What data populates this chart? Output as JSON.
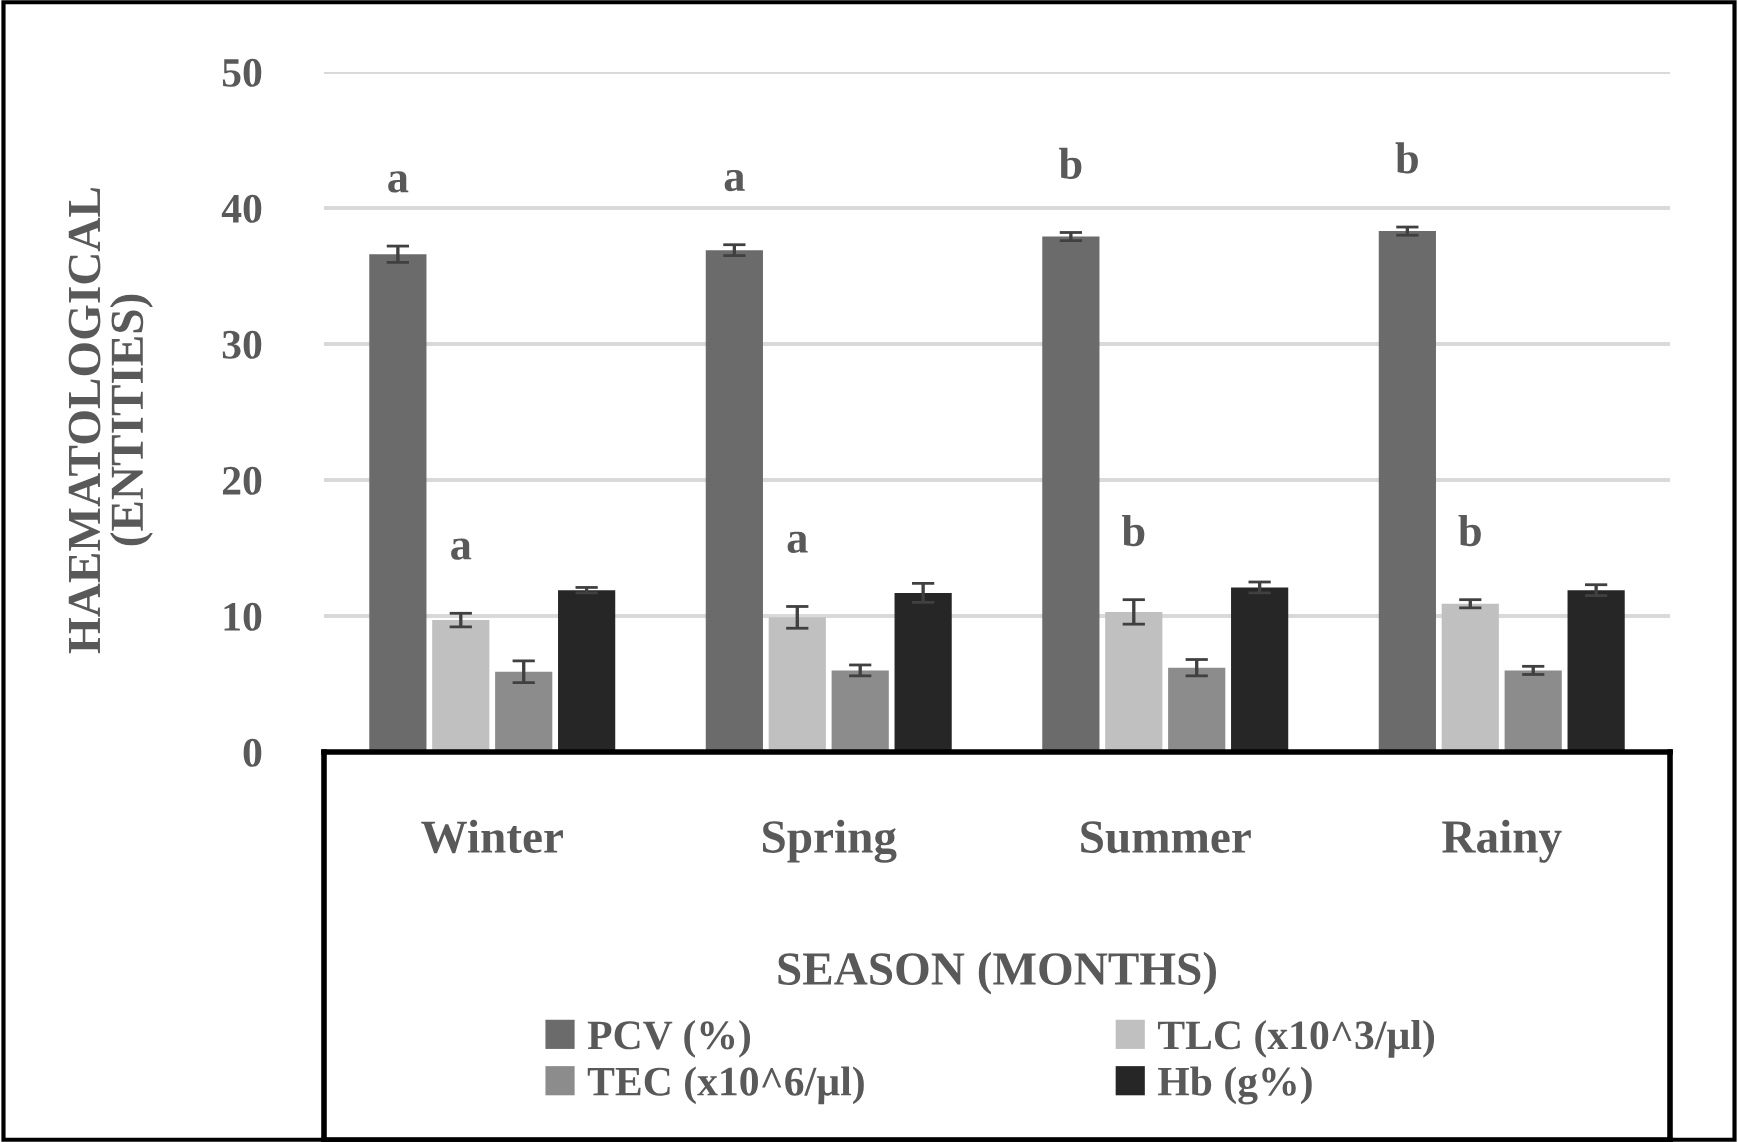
{
  "chart_data": {
    "type": "bar",
    "ylabel": "HAEMATOLOGICAL\n(ENTITIES)",
    "xlabel": "SEASON (MONTHS)",
    "categories": [
      "Winter",
      "Spring",
      "Summer",
      "Rainy"
    ],
    "series": [
      {
        "name": "PCV (%)",
        "color": "#6b6b6b",
        "values": [
          36.6,
          36.9,
          37.9,
          38.3
        ],
        "errors": [
          0.6,
          0.4,
          0.3,
          0.3
        ],
        "value_labels": [
          "a",
          "a",
          "b",
          "b"
        ]
      },
      {
        "name": "TLC (x10^3/µl)",
        "color": "#c0c0c0",
        "values": [
          9.7,
          9.9,
          10.3,
          10.9
        ],
        "errors": [
          0.5,
          0.8,
          0.9,
          0.3
        ],
        "value_labels": [
          "a",
          "a",
          "b",
          "b"
        ]
      },
      {
        "name": "TEC (x10^6/µl)",
        "color": "#8c8c8c",
        "values": [
          5.9,
          6.0,
          6.2,
          6.0
        ],
        "errors": [
          0.8,
          0.4,
          0.6,
          0.3
        ]
      },
      {
        "name": "Hb (g%)",
        "color": "#262626",
        "values": [
          11.9,
          11.7,
          12.1,
          11.9
        ],
        "errors": [
          0.2,
          0.7,
          0.4,
          0.4
        ]
      }
    ],
    "ylim": [
      0,
      50
    ],
    "yticks": [
      0,
      10,
      20,
      30,
      40,
      50
    ],
    "grid": "y",
    "legend": "bottom"
  }
}
